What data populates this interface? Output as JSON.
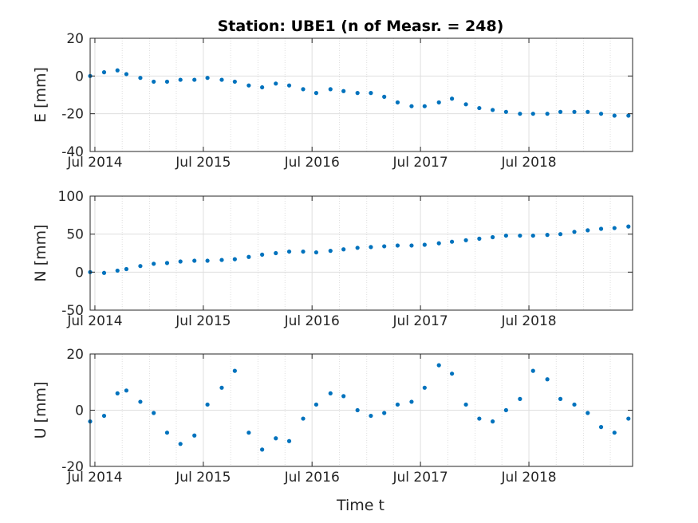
{
  "figure": {
    "title": "Station: UBE1 (n of Measr. = 248)",
    "xlabel": "Time t"
  },
  "colors": {
    "marker": "#0072BD",
    "axis": "#262626",
    "grid": "#dfdfdf"
  },
  "chart_data": [
    {
      "type": "scatter",
      "ylabel": "E [mm]",
      "ylim": [
        -40,
        20
      ],
      "yticks": [
        "20",
        "0",
        "-20",
        "-40"
      ],
      "ytick_values": [
        20,
        0,
        -20,
        -40
      ],
      "xlim": [
        "2014-06-15",
        "2019-06-15"
      ],
      "xtick_labels": [
        "Jul 2014",
        "Jul 2015",
        "Jul 2016",
        "Jul 2017",
        "Jul 2018"
      ],
      "xtick_dates": [
        "2014-07-01",
        "2015-07-01",
        "2016-07-01",
        "2017-07-01",
        "2018-07-01"
      ],
      "grid": true,
      "series": [
        {
          "x": [
            "2014-06-15",
            "2014-08-01",
            "2014-09-15",
            "2014-10-15",
            "2014-12-01",
            "2015-01-15",
            "2015-03-01",
            "2015-04-15",
            "2015-06-01",
            "2015-07-15",
            "2015-09-01",
            "2015-10-15",
            "2015-12-01",
            "2016-01-15",
            "2016-03-01",
            "2016-04-15",
            "2016-06-01",
            "2016-07-15",
            "2016-09-01",
            "2016-10-15",
            "2016-12-01",
            "2017-01-15",
            "2017-03-01",
            "2017-04-15",
            "2017-06-01",
            "2017-07-15",
            "2017-09-01",
            "2017-10-15",
            "2017-12-01",
            "2018-01-15",
            "2018-03-01",
            "2018-04-15",
            "2018-06-01",
            "2018-07-15",
            "2018-09-01",
            "2018-10-15",
            "2018-12-01",
            "2019-01-15",
            "2019-03-01",
            "2019-04-15",
            "2019-06-01"
          ],
          "y": [
            0,
            2,
            3,
            1,
            -1,
            -3,
            -3,
            -2,
            -2,
            -1,
            -2,
            -3,
            -5,
            -6,
            -4,
            -5,
            -7,
            -9,
            -7,
            -8,
            -9,
            -9,
            -11,
            -14,
            -16,
            -16,
            -14,
            -12,
            -15,
            -17,
            -18,
            -19,
            -20,
            -20,
            -20,
            -19,
            -19,
            -19,
            -20,
            -21,
            -21
          ]
        }
      ]
    },
    {
      "type": "scatter",
      "ylabel": "N [mm]",
      "ylim": [
        -50,
        100
      ],
      "yticks": [
        "100",
        "50",
        "0",
        "-50"
      ],
      "ytick_values": [
        100,
        50,
        0,
        -50
      ],
      "xlim": [
        "2014-06-15",
        "2019-06-15"
      ],
      "xtick_labels": [
        "Jul 2014",
        "Jul 2015",
        "Jul 2016",
        "Jul 2017",
        "Jul 2018"
      ],
      "xtick_dates": [
        "2014-07-01",
        "2015-07-01",
        "2016-07-01",
        "2017-07-01",
        "2018-07-01"
      ],
      "grid": true,
      "series": [
        {
          "x": [
            "2014-06-15",
            "2014-08-01",
            "2014-09-15",
            "2014-10-15",
            "2014-12-01",
            "2015-01-15",
            "2015-03-01",
            "2015-04-15",
            "2015-06-01",
            "2015-07-15",
            "2015-09-01",
            "2015-10-15",
            "2015-12-01",
            "2016-01-15",
            "2016-03-01",
            "2016-04-15",
            "2016-06-01",
            "2016-07-15",
            "2016-09-01",
            "2016-10-15",
            "2016-12-01",
            "2017-01-15",
            "2017-03-01",
            "2017-04-15",
            "2017-06-01",
            "2017-07-15",
            "2017-09-01",
            "2017-10-15",
            "2017-12-01",
            "2018-01-15",
            "2018-03-01",
            "2018-04-15",
            "2018-06-01",
            "2018-07-15",
            "2018-09-01",
            "2018-10-15",
            "2018-12-01",
            "2019-01-15",
            "2019-03-01",
            "2019-04-15",
            "2019-06-01"
          ],
          "y": [
            0,
            -1,
            2,
            4,
            8,
            11,
            12,
            14,
            15,
            15,
            16,
            17,
            20,
            23,
            25,
            27,
            27,
            26,
            28,
            30,
            32,
            33,
            34,
            35,
            35,
            36,
            38,
            40,
            42,
            44,
            46,
            48,
            48,
            48,
            49,
            50,
            53,
            55,
            57,
            58,
            60
          ]
        }
      ]
    },
    {
      "type": "scatter",
      "ylabel": "U [mm]",
      "ylim": [
        -20,
        20
      ],
      "yticks": [
        "20",
        "0",
        "-20"
      ],
      "ytick_values": [
        20,
        0,
        -20
      ],
      "xlim": [
        "2014-06-15",
        "2019-06-15"
      ],
      "xtick_labels": [
        "Jul 2014",
        "Jul 2015",
        "Jul 2016",
        "Jul 2017",
        "Jul 2018"
      ],
      "xtick_dates": [
        "2014-07-01",
        "2015-07-01",
        "2016-07-01",
        "2017-07-01",
        "2018-07-01"
      ],
      "xlabel": "Time t",
      "grid": true,
      "series": [
        {
          "x": [
            "2014-06-15",
            "2014-08-01",
            "2014-09-15",
            "2014-10-15",
            "2014-12-01",
            "2015-01-15",
            "2015-03-01",
            "2015-04-15",
            "2015-06-01",
            "2015-07-15",
            "2015-09-01",
            "2015-10-15",
            "2015-12-01",
            "2016-01-15",
            "2016-03-01",
            "2016-04-15",
            "2016-06-01",
            "2016-07-15",
            "2016-09-01",
            "2016-10-15",
            "2016-12-01",
            "2017-01-15",
            "2017-03-01",
            "2017-04-15",
            "2017-06-01",
            "2017-07-15",
            "2017-09-01",
            "2017-10-15",
            "2017-12-01",
            "2018-01-15",
            "2018-03-01",
            "2018-04-15",
            "2018-06-01",
            "2018-07-15",
            "2018-09-01",
            "2018-10-15",
            "2018-12-01",
            "2019-01-15",
            "2019-03-01",
            "2019-04-15",
            "2019-06-01"
          ],
          "y": [
            -4,
            -2,
            6,
            7,
            3,
            -1,
            -8,
            -12,
            -9,
            2,
            8,
            14,
            -8,
            -14,
            -10,
            -11,
            -3,
            2,
            6,
            5,
            0,
            -2,
            -1,
            2,
            3,
            8,
            16,
            13,
            2,
            -3,
            -4,
            0,
            4,
            14,
            11,
            4,
            2,
            -1,
            -6,
            -8,
            -3
          ]
        }
      ]
    }
  ]
}
